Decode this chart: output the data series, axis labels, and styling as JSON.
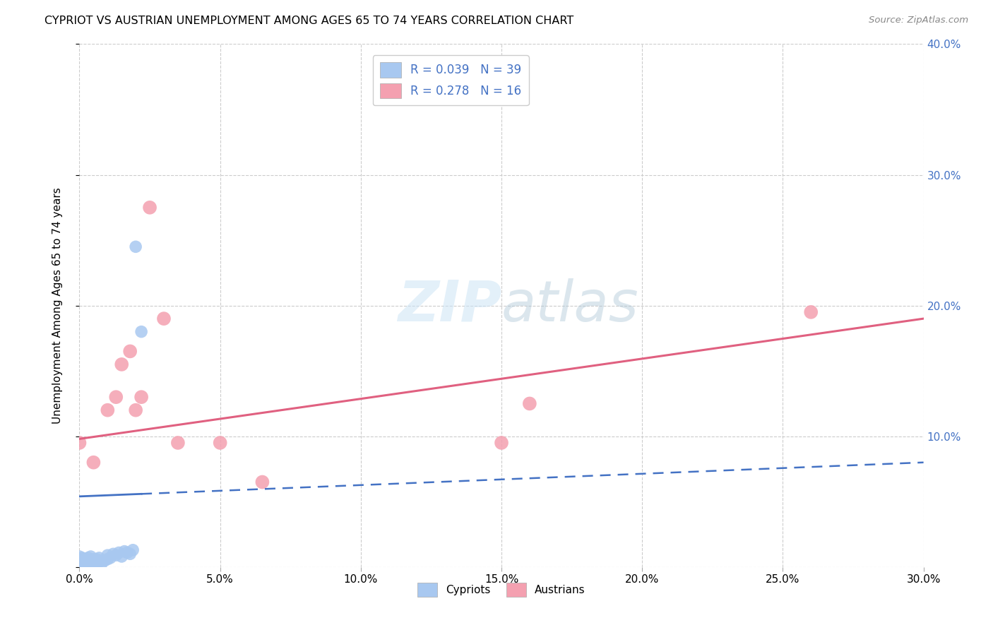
{
  "title": "CYPRIOT VS AUSTRIAN UNEMPLOYMENT AMONG AGES 65 TO 74 YEARS CORRELATION CHART",
  "source": "Source: ZipAtlas.com",
  "ylabel": "Unemployment Among Ages 65 to 74 years",
  "xlim": [
    0.0,
    0.3
  ],
  "ylim": [
    0.0,
    0.4
  ],
  "xticks": [
    0.0,
    0.05,
    0.1,
    0.15,
    0.2,
    0.25,
    0.3
  ],
  "yticks": [
    0.0,
    0.1,
    0.2,
    0.3,
    0.4
  ],
  "cypriot_color": "#a8c8f0",
  "austrian_color": "#f4a0b0",
  "cypriot_line_color": "#4472c4",
  "austrian_line_color": "#e06080",
  "right_axis_color": "#4472c4",
  "watermark_color": "#cce4f5",
  "cypriot_R": "0.039",
  "cypriot_N": "39",
  "austrian_R": "0.278",
  "austrian_N": "16",
  "cypriot_x": [
    0.0,
    0.0,
    0.0,
    0.001,
    0.001,
    0.001,
    0.001,
    0.002,
    0.002,
    0.002,
    0.003,
    0.003,
    0.003,
    0.003,
    0.004,
    0.004,
    0.004,
    0.005,
    0.005,
    0.006,
    0.006,
    0.007,
    0.007,
    0.008,
    0.008,
    0.009,
    0.01,
    0.01,
    0.011,
    0.012,
    0.013,
    0.014,
    0.015,
    0.016,
    0.017,
    0.018,
    0.019,
    0.02,
    0.022
  ],
  "cypriot_y": [
    0.005,
    0.006,
    0.008,
    0.003,
    0.004,
    0.005,
    0.007,
    0.003,
    0.005,
    0.006,
    0.002,
    0.004,
    0.005,
    0.007,
    0.003,
    0.005,
    0.008,
    0.004,
    0.006,
    0.003,
    0.006,
    0.004,
    0.007,
    0.003,
    0.005,
    0.005,
    0.006,
    0.009,
    0.007,
    0.01,
    0.009,
    0.011,
    0.008,
    0.012,
    0.011,
    0.01,
    0.013,
    0.245,
    0.18
  ],
  "austrian_x": [
    0.0,
    0.005,
    0.01,
    0.013,
    0.015,
    0.018,
    0.02,
    0.022,
    0.025,
    0.03,
    0.035,
    0.05,
    0.065,
    0.15,
    0.16,
    0.26
  ],
  "austrian_y": [
    0.095,
    0.08,
    0.12,
    0.13,
    0.155,
    0.165,
    0.12,
    0.13,
    0.275,
    0.19,
    0.095,
    0.095,
    0.065,
    0.095,
    0.125,
    0.195
  ],
  "cypriot_trend_x0": 0.0,
  "cypriot_trend_y0": 0.054,
  "cypriot_trend_x1": 0.3,
  "cypriot_trend_y1": 0.08,
  "austrian_trend_x0": 0.0,
  "austrian_trend_y0": 0.098,
  "austrian_trend_x1": 0.3,
  "austrian_trend_y1": 0.19
}
